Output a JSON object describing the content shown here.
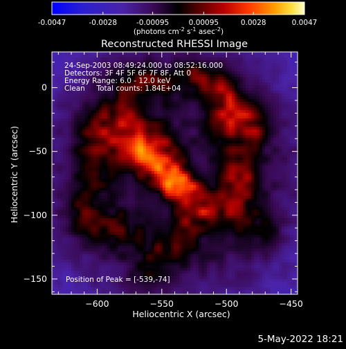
{
  "chart_data": {
    "type": "heatmap",
    "title": "Reconstructed RHESSI Image",
    "xlabel": "Heliocentric X (arcsec)",
    "ylabel": "Heliocentric Y (arcsec)",
    "xlim": [
      -635,
      -445
    ],
    "ylim": [
      -162,
      28
    ],
    "xticks": [
      -600,
      -550,
      -500,
      -450
    ],
    "yticks": [
      -150,
      -100,
      -50,
      0
    ],
    "colorbar": {
      "min": -0.0047,
      "max": 0.0047,
      "ticks": [
        "-0.0047",
        "-0.0028",
        "-0.00095",
        "0.00095",
        "0.0028",
        "0.0047"
      ],
      "unit_prefix": "(photons cm",
      "unit_exp1": "-2",
      "unit_mid1": " s",
      "unit_exp2": "-1",
      "unit_mid2": " asec",
      "unit_exp3": "-2",
      "unit_suffix": ")"
    },
    "info_lines": [
      "24-Sep-2003 08:49:24.000 to 08:52:16.000",
      "Detectors: 3F 4F 5F 6F 7F 8F, Att 0",
      "Energy Range: 6.0 - 12.0 keV",
      "Clean     Total counts: 1.84E+04"
    ],
    "peak_label": "Position of Peak = [-539,-74]",
    "peak": [
      -539,
      -74
    ],
    "blobs": [
      {
        "x": -539,
        "y": -74,
        "sx": 14,
        "sy": 9,
        "a": 0.0042,
        "rot": -40
      },
      {
        "x": -560,
        "y": -50,
        "sx": 13,
        "sy": 12,
        "a": 0.0034,
        "rot": -30
      },
      {
        "x": -583,
        "y": -30,
        "sx": 16,
        "sy": 13,
        "a": 0.0022,
        "rot": 0
      },
      {
        "x": -515,
        "y": -95,
        "sx": 14,
        "sy": 9,
        "a": 0.002,
        "rot": -20
      },
      {
        "x": -490,
        "y": -75,
        "sx": 10,
        "sy": 22,
        "a": 0.0021,
        "rot": 0
      },
      {
        "x": -498,
        "y": -20,
        "sx": 12,
        "sy": 14,
        "a": 0.002,
        "rot": 0
      },
      {
        "x": -480,
        "y": -30,
        "sx": 9,
        "sy": 10,
        "a": 0.0016,
        "rot": 0
      },
      {
        "x": -565,
        "y": 5,
        "sx": 20,
        "sy": 11,
        "a": 0.0016,
        "rot": 0
      },
      {
        "x": -523,
        "y": 12,
        "sx": 10,
        "sy": 9,
        "a": 0.0013,
        "rot": 0
      },
      {
        "x": -505,
        "y": 0,
        "sx": 10,
        "sy": 10,
        "a": 0.0014,
        "rot": 0
      },
      {
        "x": -600,
        "y": -55,
        "sx": 13,
        "sy": 18,
        "a": 0.0015,
        "rot": 0
      },
      {
        "x": -612,
        "y": -100,
        "sx": 10,
        "sy": 14,
        "a": 0.0012,
        "rot": 0
      },
      {
        "x": -585,
        "y": -110,
        "sx": 14,
        "sy": 12,
        "a": 0.0012,
        "rot": 0
      },
      {
        "x": -548,
        "y": -125,
        "sx": 16,
        "sy": 12,
        "a": 0.0011,
        "rot": 0
      },
      {
        "x": -470,
        "y": -115,
        "sx": 9,
        "sy": 11,
        "a": 0.001,
        "rot": 0
      },
      {
        "x": -560,
        "y": -150,
        "sx": 12,
        "sy": 9,
        "a": 0.0009,
        "rot": 0
      },
      {
        "x": -530,
        "y": -110,
        "sx": 10,
        "sy": 10,
        "a": 0.0012,
        "rot": 0
      }
    ],
    "background": {
      "base": -0.0008,
      "edge_low": -0.0022
    }
  },
  "footer": {
    "date": "5-May-2022 18:21"
  }
}
